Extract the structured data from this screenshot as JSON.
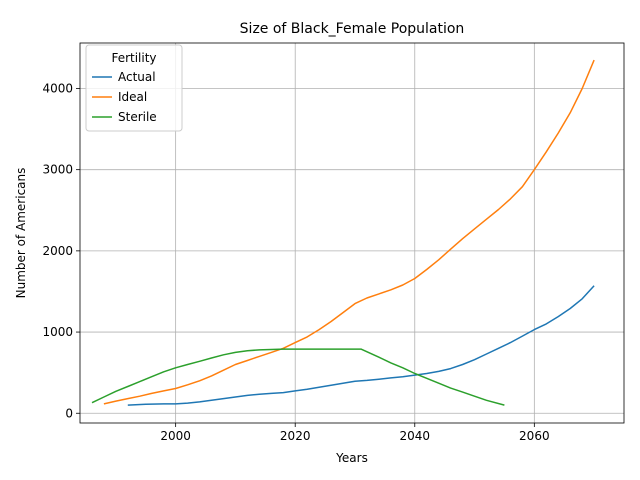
{
  "chart_data": {
    "type": "line",
    "title": "Size of Black_Female Population",
    "xlabel": "Years",
    "ylabel": "Number of Americans",
    "xlim": [
      1984,
      2075
    ],
    "ylim": [
      -120,
      4560
    ],
    "x_ticks": [
      2000,
      2020,
      2040,
      2060
    ],
    "y_ticks": [
      0,
      1000,
      2000,
      3000,
      4000
    ],
    "grid": true,
    "legend": {
      "title": "Fertility",
      "placement": "top-left"
    },
    "series": [
      {
        "name": "Actual",
        "color": "#1f77b4",
        "x": [
          1992,
          1995,
          1998,
          2000,
          2002,
          2004,
          2006,
          2008,
          2010,
          2012,
          2014,
          2016,
          2018,
          2020,
          2022,
          2024,
          2026,
          2028,
          2030,
          2032,
          2034,
          2036,
          2038,
          2040,
          2042,
          2044,
          2046,
          2048,
          2050,
          2052,
          2054,
          2056,
          2058,
          2060,
          2062,
          2064,
          2066,
          2068,
          2070
        ],
        "y": [
          100,
          110,
          115,
          115,
          125,
          140,
          160,
          180,
          200,
          220,
          235,
          245,
          255,
          275,
          295,
          320,
          345,
          370,
          395,
          405,
          420,
          435,
          450,
          470,
          490,
          515,
          550,
          600,
          660,
          730,
          800,
          870,
          950,
          1030,
          1100,
          1190,
          1290,
          1410,
          1570
        ]
      },
      {
        "name": "Ideal",
        "color": "#ff7f0e",
        "x": [
          1988,
          1990,
          1992,
          1994,
          1996,
          1998,
          2000,
          2002,
          2004,
          2006,
          2008,
          2010,
          2012,
          2014,
          2016,
          2018,
          2020,
          2022,
          2024,
          2026,
          2028,
          2030,
          2032,
          2034,
          2036,
          2038,
          2040,
          2042,
          2044,
          2046,
          2048,
          2050,
          2052,
          2054,
          2056,
          2058,
          2060,
          2062,
          2064,
          2066,
          2068,
          2070
        ],
        "y": [
          115,
          150,
          180,
          210,
          245,
          275,
          305,
          350,
          400,
          460,
          530,
          600,
          650,
          700,
          750,
          800,
          870,
          940,
          1030,
          1130,
          1240,
          1350,
          1420,
          1470,
          1520,
          1580,
          1660,
          1770,
          1890,
          2020,
          2150,
          2270,
          2390,
          2510,
          2640,
          2790,
          3000,
          3220,
          3450,
          3700,
          4000,
          4350
        ]
      },
      {
        "name": "Sterile",
        "color": "#2ca02c",
        "x": [
          1986,
          1988,
          1990,
          1992,
          1994,
          1996,
          1998,
          2000,
          2002,
          2004,
          2006,
          2008,
          2010,
          2012,
          2014,
          2016,
          2018,
          2020,
          2022,
          2024,
          2026,
          2028,
          2031,
          2034,
          2036,
          2038,
          2040,
          2042,
          2044,
          2046,
          2048,
          2050,
          2052,
          2055
        ],
        "y": [
          130,
          200,
          270,
          330,
          390,
          450,
          510,
          560,
          600,
          640,
          680,
          720,
          750,
          770,
          780,
          785,
          790,
          790,
          790,
          790,
          790,
          790,
          790,
          690,
          620,
          560,
          490,
          430,
          370,
          310,
          260,
          210,
          160,
          100
        ]
      }
    ]
  }
}
